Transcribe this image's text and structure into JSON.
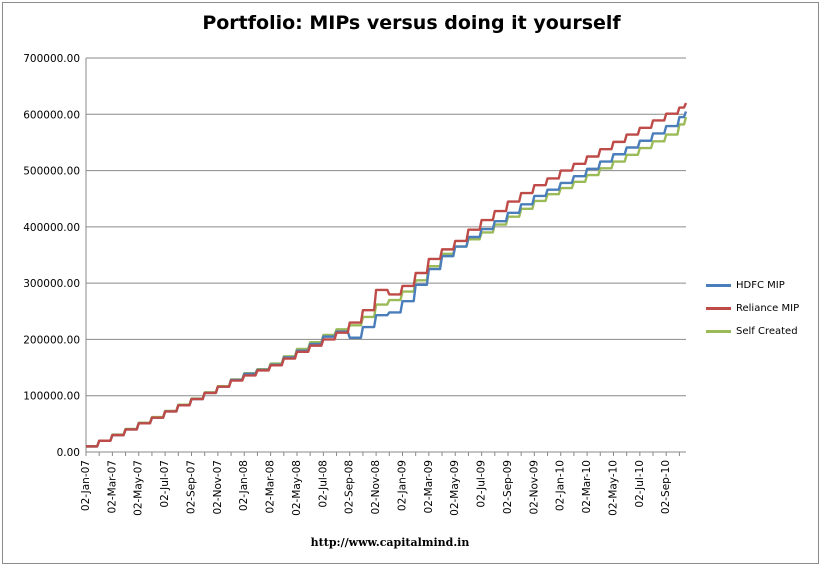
{
  "chart_data": {
    "type": "line",
    "title": "Portfolio: MIPs versus doing it yourself",
    "xlabel": "",
    "ylabel": "",
    "ylim": [
      0,
      700000
    ],
    "y_ticks": [
      0,
      100000,
      200000,
      300000,
      400000,
      500000,
      600000,
      700000
    ],
    "y_tick_labels": [
      "0.00",
      "100000.00",
      "200000.00",
      "300000.00",
      "400000.00",
      "500000.00",
      "600000.00",
      "700000.00"
    ],
    "x_tick_labels": [
      "02-Jan-07",
      "02-Mar-07",
      "02-May-07",
      "02-Jul-07",
      "02-Sep-07",
      "02-Nov-07",
      "02-Jan-08",
      "02-Mar-08",
      "02-May-08",
      "02-Jul-08",
      "02-Sep-08",
      "02-Nov-08",
      "02-Jan-09",
      "02-Mar-09",
      "02-May-09",
      "02-Jul-09",
      "02-Sep-09",
      "02-Nov-09",
      "02-Jan-10",
      "02-Mar-10",
      "02-May-10",
      "02-Jul-10",
      "02-Sep-10"
    ],
    "x_range_months": [
      0,
      45.5
    ],
    "grid": "horizontal",
    "legend_position": "right",
    "series": [
      {
        "name": "HDFC MIP",
        "color": "#4a7ebb",
        "x_months": [
          0,
          1,
          2,
          3,
          4,
          5,
          6,
          7,
          8,
          9,
          10,
          11,
          12,
          13,
          14,
          15,
          16,
          17,
          18,
          19,
          20,
          21,
          22,
          23,
          24,
          25,
          26,
          27,
          28,
          29,
          30,
          31,
          32,
          33,
          34,
          35,
          36,
          37,
          38,
          39,
          40,
          41,
          42,
          43,
          44,
          45,
          45.5
        ],
        "values": [
          10000,
          20000,
          30000,
          40000,
          51000,
          61000,
          72000,
          83000,
          94000,
          105000,
          116000,
          128000,
          139000,
          146000,
          155000,
          168000,
          180000,
          192000,
          205000,
          214000,
          203000,
          222000,
          243000,
          248000,
          268000,
          297000,
          325000,
          348000,
          365000,
          382000,
          396000,
          410000,
          425000,
          440000,
          455000,
          466000,
          478000,
          490000,
          503000,
          516000,
          529000,
          541000,
          553000,
          566000,
          579000,
          595000,
          605000
        ]
      },
      {
        "name": "Reliance MIP",
        "color": "#be4b48",
        "x_months": [
          0,
          1,
          2,
          3,
          4,
          5,
          6,
          7,
          8,
          9,
          10,
          11,
          12,
          13,
          14,
          15,
          16,
          17,
          18,
          19,
          20,
          21,
          22,
          23,
          24,
          25,
          26,
          27,
          28,
          29,
          30,
          31,
          32,
          33,
          34,
          35,
          36,
          37,
          38,
          39,
          40,
          41,
          42,
          43,
          44,
          45,
          45.5
        ],
        "values": [
          10000,
          20000,
          30000,
          40000,
          51000,
          61000,
          72000,
          83000,
          94000,
          105000,
          116000,
          127000,
          136000,
          145000,
          154000,
          166000,
          178000,
          189000,
          200000,
          212000,
          230000,
          252000,
          288000,
          280000,
          295000,
          318000,
          343000,
          360000,
          375000,
          395000,
          412000,
          428000,
          445000,
          460000,
          474000,
          486000,
          500000,
          512000,
          525000,
          538000,
          551000,
          564000,
          576000,
          589000,
          601000,
          612000,
          620000
        ]
      },
      {
        "name": "Self Created",
        "color": "#9bbb59",
        "x_months": [
          0,
          1,
          2,
          3,
          4,
          5,
          6,
          7,
          8,
          9,
          10,
          11,
          12,
          13,
          14,
          15,
          16,
          17,
          18,
          19,
          20,
          21,
          22,
          23,
          24,
          25,
          26,
          27,
          28,
          29,
          30,
          31,
          32,
          33,
          34,
          35,
          36,
          37,
          38,
          39,
          40,
          41,
          42,
          43,
          44,
          45,
          45.5
        ],
        "values": [
          10000,
          20000,
          31000,
          41000,
          52000,
          62000,
          73000,
          84000,
          95000,
          106000,
          117000,
          129000,
          140000,
          147000,
          157000,
          170000,
          183000,
          195000,
          208000,
          218000,
          225000,
          240000,
          262000,
          270000,
          285000,
          305000,
          330000,
          352000,
          365000,
          378000,
          390000,
          404000,
          418000,
          432000,
          446000,
          458000,
          469000,
          480000,
          492000,
          504000,
          516000,
          528000,
          540000,
          552000,
          564000,
          582000,
          595000
        ]
      }
    ]
  },
  "footer": {
    "url": "http://www.capitalmind.in"
  }
}
